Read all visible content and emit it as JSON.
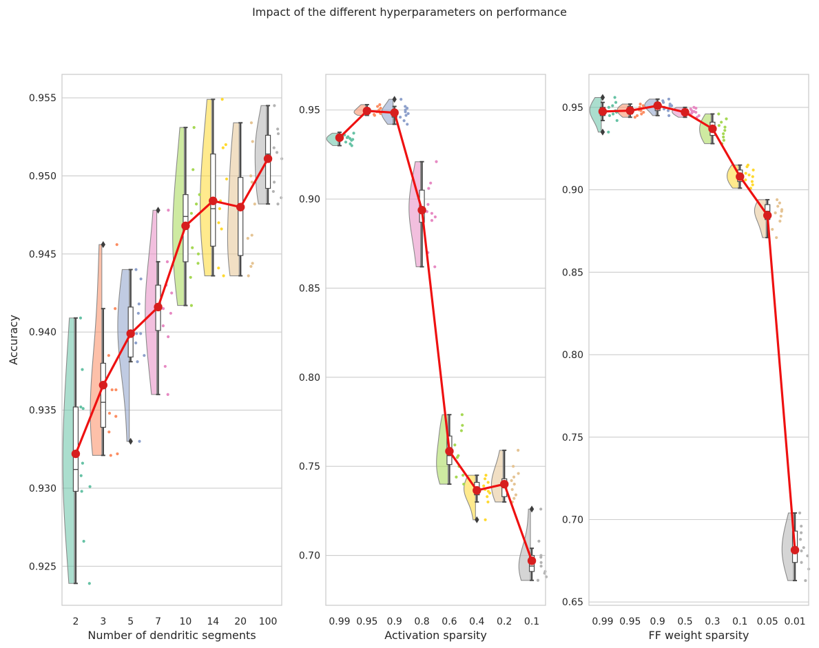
{
  "figure": {
    "suptitle": "Impact of the different hyperparameters on performance"
  },
  "colors": {
    "mean_line": "#ee1111",
    "mean_marker": "#d71e1e",
    "grid": "#cccccc",
    "palette": [
      "#66c2a5",
      "#fc8d62",
      "#8da0cb",
      "#e78ac3",
      "#a6d854",
      "#ffd92f",
      "#e5c494",
      "#b3b3b3"
    ]
  },
  "chart_data": [
    {
      "type": "raincloud",
      "xlabel": "Number of dendritic segments",
      "ylabel": "Accuracy",
      "categories": [
        "2",
        "3",
        "5",
        "7",
        "10",
        "14",
        "20",
        "100"
      ],
      "ylim": [
        0.9225,
        0.9565
      ],
      "yticks": [
        0.925,
        0.93,
        0.935,
        0.94,
        0.945,
        0.95,
        0.955
      ],
      "ytick_labels": [
        "0.925",
        "0.930",
        "0.935",
        "0.940",
        "0.945",
        "0.950",
        "0.955"
      ],
      "mean": [
        0.9322,
        0.9366,
        0.9399,
        0.9416,
        0.9468,
        0.9484,
        0.948,
        0.9511
      ],
      "box": [
        {
          "min": 0.9239,
          "q1": 0.9298,
          "median": 0.9312,
          "q3": 0.9352,
          "max": 0.9409
        },
        {
          "min": 0.9321,
          "q1": 0.9339,
          "median": 0.9355,
          "q3": 0.938,
          "max": 0.9415
        },
        {
          "min": 0.9381,
          "q1": 0.9384,
          "median": 0.9398,
          "q3": 0.9416,
          "max": 0.944
        },
        {
          "min": 0.936,
          "q1": 0.9401,
          "median": 0.9416,
          "q3": 0.943,
          "max": 0.9445
        },
        {
          "min": 0.9417,
          "q1": 0.9445,
          "median": 0.9474,
          "q3": 0.9488,
          "max": 0.9531
        },
        {
          "min": 0.9436,
          "q1": 0.9455,
          "median": 0.9479,
          "q3": 0.9514,
          "max": 0.9549
        },
        {
          "min": 0.9436,
          "q1": 0.9449,
          "median": 0.9479,
          "q3": 0.9499,
          "max": 0.9534
        },
        {
          "min": 0.9482,
          "q1": 0.9492,
          "median": 0.9514,
          "q3": 0.9526,
          "max": 0.9545
        }
      ],
      "outliers": [
        [],
        [
          0.9456
        ],
        [
          0.933
        ],
        [
          0.9478
        ],
        [],
        [],
        [],
        []
      ],
      "points": [
        [
          0.9409,
          0.9376,
          0.9352,
          0.9351,
          0.9316,
          0.9308,
          0.9301,
          0.9298,
          0.9266,
          0.9239
        ],
        [
          0.9456,
          0.9415,
          0.9385,
          0.9363,
          0.9363,
          0.9348,
          0.9346,
          0.9336,
          0.9322,
          0.9321
        ],
        [
          0.944,
          0.9434,
          0.9418,
          0.9412,
          0.9399,
          0.9399,
          0.9393,
          0.9385,
          0.9381,
          0.933
        ],
        [
          0.9478,
          0.9445,
          0.943,
          0.9425,
          0.9415,
          0.9412,
          0.9404,
          0.9397,
          0.9378,
          0.936
        ],
        [
          0.9531,
          0.9504,
          0.9488,
          0.9482,
          0.9476,
          0.9454,
          0.945,
          0.9444,
          0.9435,
          0.9417
        ],
        [
          0.9549,
          0.952,
          0.9518,
          0.9498,
          0.9484,
          0.9479,
          0.947,
          0.9466,
          0.9441,
          0.9436
        ],
        [
          0.9534,
          0.9522,
          0.95,
          0.9496,
          0.9482,
          0.9462,
          0.946,
          0.9444,
          0.9442,
          0.9436
        ],
        [
          0.9545,
          0.953,
          0.9527,
          0.9518,
          0.9515,
          0.9511,
          0.9496,
          0.949,
          0.9486,
          0.9482
        ]
      ]
    },
    {
      "type": "raincloud",
      "xlabel": "Activation sparsity",
      "ylabel": "",
      "categories": [
        "0.99",
        "0.95",
        "0.9",
        "0.8",
        "0.6",
        "0.4",
        "0.2",
        "0.1"
      ],
      "ylim": [
        0.672,
        0.97
      ],
      "yticks": [
        0.7,
        0.75,
        0.8,
        0.85,
        0.9,
        0.95
      ],
      "ytick_labels": [
        "0.70",
        "0.75",
        "0.80",
        "0.85",
        "0.90",
        "0.95"
      ],
      "mean": [
        0.9345,
        0.9495,
        0.9485,
        0.8938,
        0.7585,
        0.7365,
        0.74,
        0.697
      ],
      "box": [
        {
          "min": 0.93,
          "q1": 0.933,
          "median": 0.9345,
          "q3": 0.936,
          "max": 0.9375
        },
        {
          "min": 0.947,
          "q1": 0.948,
          "median": 0.949,
          "q3": 0.951,
          "max": 0.953
        },
        {
          "min": 0.942,
          "q1": 0.946,
          "median": 0.948,
          "q3": 0.95,
          "max": 0.952
        },
        {
          "min": 0.862,
          "q1": 0.887,
          "median": 0.892,
          "q3": 0.905,
          "max": 0.921
        },
        {
          "min": 0.74,
          "q1": 0.751,
          "median": 0.756,
          "q3": 0.767,
          "max": 0.779
        },
        {
          "min": 0.73,
          "q1": 0.734,
          "median": 0.737,
          "q3": 0.741,
          "max": 0.745
        },
        {
          "min": 0.73,
          "q1": 0.733,
          "median": 0.739,
          "q3": 0.743,
          "max": 0.759
        },
        {
          "min": 0.686,
          "q1": 0.691,
          "median": 0.694,
          "q3": 0.7,
          "max": 0.704
        }
      ],
      "outliers": [
        [],
        [],
        [
          0.956
        ],
        [],
        [],
        [
          0.72
        ],
        [],
        [
          0.726
        ]
      ],
      "points": [
        [
          0.937,
          0.936,
          0.935,
          0.9345,
          0.934,
          0.9335,
          0.933,
          0.932,
          0.931,
          0.93
        ],
        [
          0.953,
          0.952,
          0.951,
          0.95,
          0.9495,
          0.949,
          0.9485,
          0.948,
          0.9475,
          0.947
        ],
        [
          0.956,
          0.952,
          0.951,
          0.95,
          0.949,
          0.948,
          0.947,
          0.946,
          0.944,
          0.942
        ],
        [
          0.921,
          0.909,
          0.906,
          0.897,
          0.893,
          0.892,
          0.89,
          0.888,
          0.87,
          0.862
        ],
        [
          0.779,
          0.773,
          0.77,
          0.762,
          0.756,
          0.755,
          0.75,
          0.745,
          0.744,
          0.74
        ],
        [
          0.745,
          0.743,
          0.741,
          0.739,
          0.737,
          0.736,
          0.735,
          0.733,
          0.73,
          0.72
        ],
        [
          0.759,
          0.75,
          0.746,
          0.744,
          0.742,
          0.74,
          0.737,
          0.734,
          0.732,
          0.73
        ],
        [
          0.726,
          0.708,
          0.7,
          0.699,
          0.696,
          0.694,
          0.691,
          0.69,
          0.688,
          0.686
        ]
      ]
    },
    {
      "type": "raincloud",
      "xlabel": "FF weight sparsity",
      "ylabel": "",
      "categories": [
        "0.99",
        "0.95",
        "0.9",
        "0.5",
        "0.3",
        "0.1",
        "0.05",
        "0.01"
      ],
      "ylim": [
        0.648,
        0.97
      ],
      "yticks": [
        0.65,
        0.7,
        0.75,
        0.8,
        0.85,
        0.9,
        0.95
      ],
      "ytick_labels": [
        "0.65",
        "0.70",
        "0.75",
        "0.80",
        "0.85",
        "0.90",
        "0.95"
      ],
      "mean": [
        0.9475,
        0.948,
        0.951,
        0.947,
        0.937,
        0.908,
        0.8845,
        0.6815
      ],
      "box": [
        {
          "min": 0.942,
          "q1": 0.945,
          "median": 0.948,
          "q3": 0.95,
          "max": 0.953
        },
        {
          "min": 0.944,
          "q1": 0.946,
          "median": 0.949,
          "q3": 0.9505,
          "max": 0.952
        },
        {
          "min": 0.945,
          "q1": 0.948,
          "median": 0.951,
          "q3": 0.953,
          "max": 0.955
        },
        {
          "min": 0.944,
          "q1": 0.9455,
          "median": 0.9475,
          "q3": 0.949,
          "max": 0.95
        },
        {
          "min": 0.928,
          "q1": 0.933,
          "median": 0.936,
          "q3": 0.941,
          "max": 0.946
        },
        {
          "min": 0.901,
          "q1": 0.905,
          "median": 0.909,
          "q3": 0.912,
          "max": 0.915
        },
        {
          "min": 0.871,
          "q1": 0.882,
          "median": 0.887,
          "q3": 0.891,
          "max": 0.894
        },
        {
          "min": 0.663,
          "q1": 0.674,
          "median": 0.681,
          "q3": 0.693,
          "max": 0.704
        }
      ],
      "outliers": [
        [
          0.956,
          0.935
        ],
        [],
        [],
        [],
        [],
        [],
        [],
        []
      ],
      "points": [
        [
          0.956,
          0.953,
          0.951,
          0.95,
          0.948,
          0.947,
          0.946,
          0.945,
          0.942,
          0.935
        ],
        [
          0.952,
          0.951,
          0.95,
          0.949,
          0.9485,
          0.948,
          0.947,
          0.946,
          0.945,
          0.944
        ],
        [
          0.955,
          0.954,
          0.953,
          0.952,
          0.951,
          0.951,
          0.95,
          0.949,
          0.948,
          0.945
        ],
        [
          0.95,
          0.9495,
          0.949,
          0.948,
          0.9475,
          0.947,
          0.9465,
          0.946,
          0.945,
          0.944
        ],
        [
          0.946,
          0.943,
          0.941,
          0.939,
          0.938,
          0.936,
          0.934,
          0.932,
          0.93,
          0.928
        ],
        [
          0.915,
          0.914,
          0.912,
          0.91,
          0.909,
          0.908,
          0.906,
          0.905,
          0.903,
          0.901
        ],
        [
          0.894,
          0.892,
          0.89,
          0.888,
          0.887,
          0.886,
          0.884,
          0.881,
          0.876,
          0.871
        ],
        [
          0.704,
          0.696,
          0.692,
          0.688,
          0.683,
          0.681,
          0.678,
          0.674,
          0.67,
          0.663
        ]
      ]
    }
  ]
}
